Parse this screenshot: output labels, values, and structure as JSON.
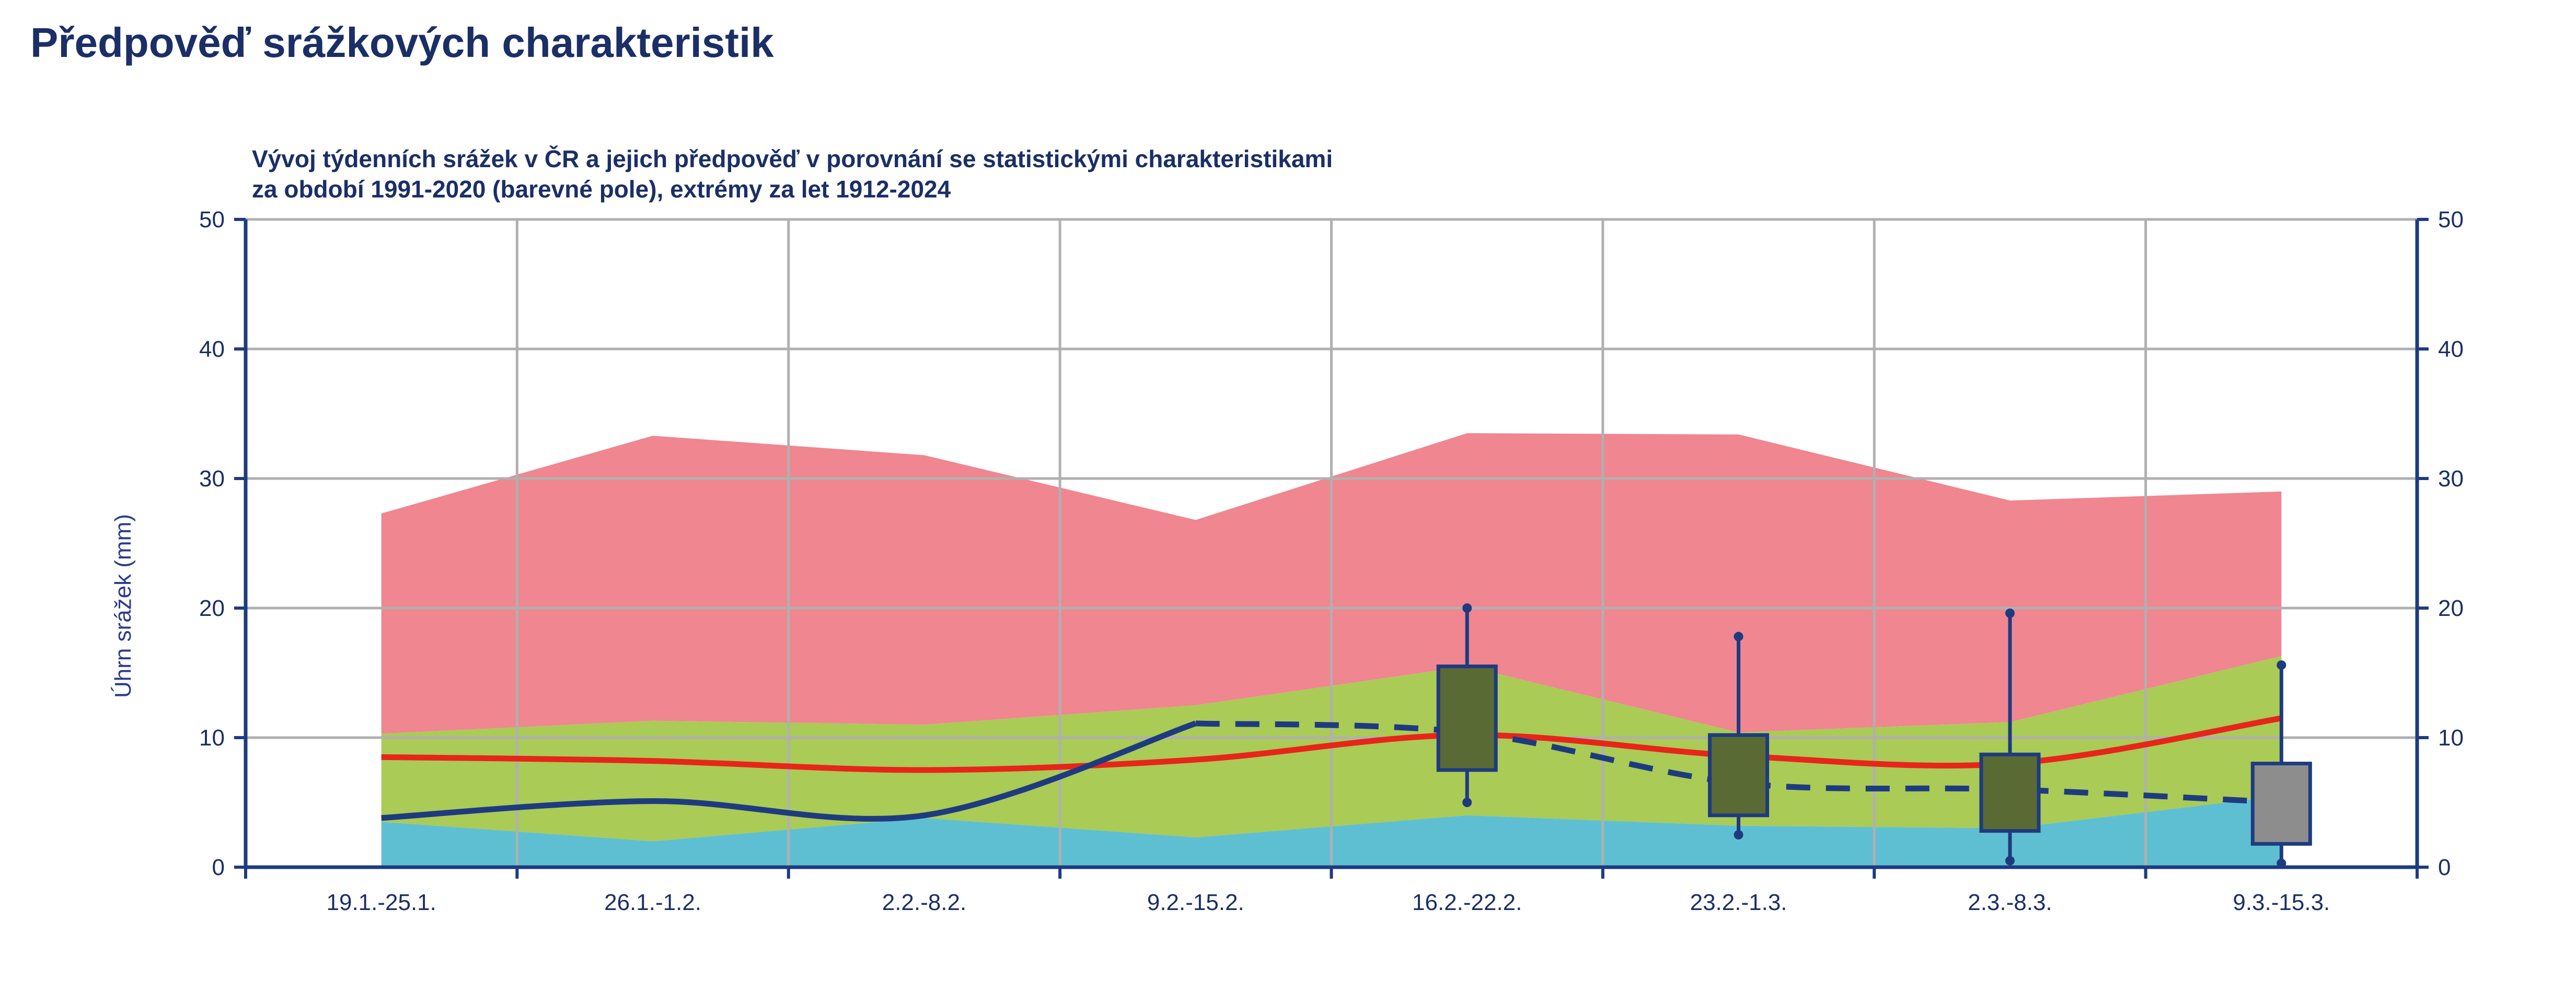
{
  "page_title": "Předpověď srážkových charakteristik",
  "chart_data": {
    "type": "area",
    "title": "Vývoj týdenních srážek v ČR a jejich předpověď v porovnání se statistickými charakteristikami",
    "subtitle": "za období 1991-2020 (barevné pole), extrémy za let 1912-2024",
    "ylabel": "Úhrn srážek (mm)",
    "ylim": [
      0,
      50
    ],
    "yticks": [
      0,
      10,
      20,
      30,
      40,
      50
    ],
    "grid": true,
    "categories": [
      "19.1.-25.1.",
      "26.1.-1.2.",
      "2.2.-8.2.",
      "9.2.-15.2.",
      "16.2.-22.2.",
      "23.2.-1.3.",
      "2.3.-8.3.",
      "9.3.-15.3."
    ],
    "bands": {
      "low": [
        3.5,
        2.0,
        3.8,
        2.3,
        4.0,
        3.2,
        3.0,
        5.5
      ],
      "mid": [
        10.3,
        11.3,
        11.0,
        12.5,
        15.5,
        10.4,
        11.2,
        16.3
      ],
      "high": [
        27.3,
        33.3,
        31.8,
        26.8,
        33.5,
        33.4,
        28.3,
        29.0
      ]
    },
    "median": [
      8.5,
      8.2,
      7.5,
      8.3,
      10.2,
      8.6,
      8.0,
      11.5
    ],
    "observed": [
      3.8,
      5.1,
      4.0,
      11.1
    ],
    "forecast": [
      11.1,
      10.4,
      6.5,
      6.0,
      5.0
    ],
    "boxes": [
      {
        "min": 5.0,
        "q1": 7.5,
        "q3": 15.5,
        "max": 20.0
      },
      {
        "min": 2.5,
        "q1": 4.0,
        "q3": 10.2,
        "max": 17.8
      },
      {
        "min": 0.5,
        "q1": 2.8,
        "q3": 8.7,
        "max": 19.6
      },
      {
        "min": 0.3,
        "q1": 1.8,
        "q3": 8.0,
        "max": 15.6
      }
    ],
    "colors": {
      "low_band": "#5fbfd2",
      "mid_band": "#aacb55",
      "high_band": "#ef8690",
      "median_line": "#e8251a",
      "observed_line": "#1e3b80",
      "forecast_line": "#1e3b80",
      "box_fill": "#5a6a34",
      "box_last_fill": "#8d8d8d",
      "box_stroke": "#1e3b80",
      "grid": "#b0b0b0",
      "axis": "#1e3b80"
    }
  }
}
